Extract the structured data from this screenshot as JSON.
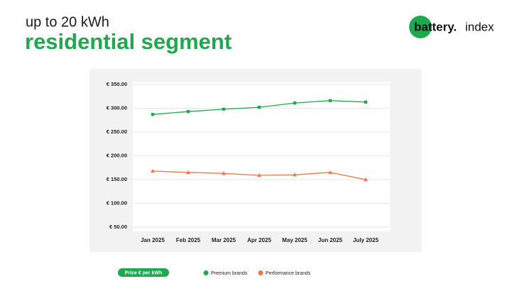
{
  "logo": {
    "name": "battery.",
    "suffix": "index"
  },
  "chart_data": {
    "type": "line",
    "subtitle": "up to 20 kWh",
    "title": "residential segment",
    "ylabel": "Price € per kWh",
    "categories": [
      "Jan 2025",
      "Feb 2025",
      "Mar 2025",
      "Apr 2025",
      "May 2025",
      "Jun 2025",
      "July 2025"
    ],
    "series": [
      {
        "name": "Premium brands",
        "color": "#1fa84f",
        "marker": "square",
        "values": [
          287,
          293,
          298,
          302,
          311,
          316,
          313
        ]
      },
      {
        "name": "Performance brands",
        "color": "#f07848",
        "marker": "triangle",
        "values": [
          168,
          165,
          163,
          159,
          160,
          165,
          150
        ]
      }
    ],
    "ylim": [
      50,
      350
    ],
    "yticks": [
      {
        "value": 50,
        "label": "€ 50.00"
      },
      {
        "value": 100,
        "label": "€ 100.00"
      },
      {
        "value": 150,
        "label": "€ 150.00"
      },
      {
        "value": 200,
        "label": "€ 200.00"
      },
      {
        "value": 250,
        "label": "€ 250.00"
      },
      {
        "value": 300,
        "label": "€ 300.00"
      },
      {
        "value": 350,
        "label": "€ 350.00"
      }
    ],
    "grid": true,
    "legend": "bottom"
  }
}
